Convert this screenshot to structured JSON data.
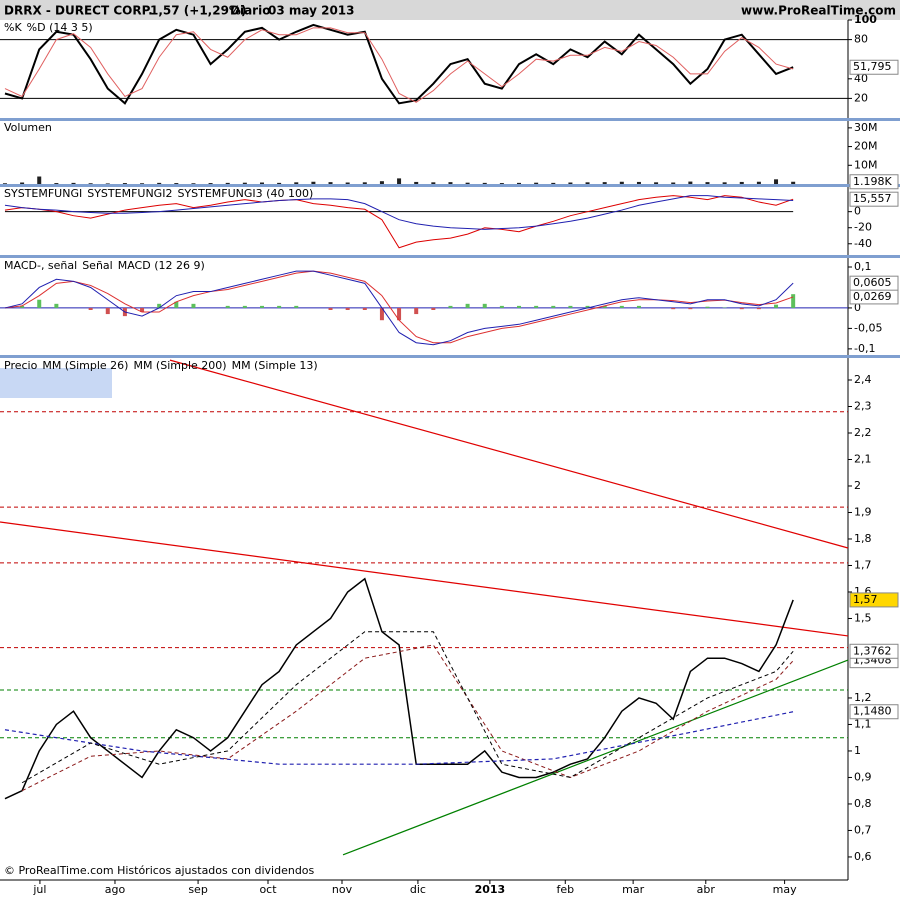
{
  "chart_data": {
    "type": "financial",
    "header": {
      "symbol": "DRRX - DURECT CORP.",
      "quote": "1,57 (+1,29%)",
      "period": "Diario",
      "date": "03 may 2013",
      "site": "www.ProRealTime.com"
    },
    "footer": "© ProRealTime.com Históricos ajustados con dividendos",
    "x": [
      0,
      1,
      2,
      3,
      4,
      5,
      6,
      7,
      8,
      9,
      10,
      11,
      12,
      13,
      14,
      15,
      16,
      17,
      18,
      19,
      20,
      21,
      22,
      23,
      24,
      25,
      26,
      27,
      28,
      29,
      30,
      31,
      32,
      33,
      34,
      35,
      36,
      37,
      38,
      39,
      40,
      41,
      42,
      43,
      44,
      45,
      46
    ],
    "xlim": [
      -0.29,
      49.2
    ],
    "xticks": [
      {
        "value": 2.04,
        "label": "jul"
      },
      {
        "value": 6.42,
        "label": "ago"
      },
      {
        "value": 11.27,
        "label": "sep"
      },
      {
        "value": 15.35,
        "label": "oct"
      },
      {
        "value": 19.67,
        "label": "nov"
      },
      {
        "value": 24.1,
        "label": "dic"
      },
      {
        "value": 28.3,
        "label": "2013"
      },
      {
        "value": 32.7,
        "label": "feb"
      },
      {
        "value": 36.66,
        "label": "mar"
      },
      {
        "value": 40.9,
        "label": "abr"
      },
      {
        "value": 45.5,
        "label": "may"
      }
    ],
    "panels": [
      {
        "type": "line",
        "ylim": [
          0,
          100
        ],
        "yticks": [
          100,
          80,
          40,
          20
        ],
        "levels": [
          {
            "value": 80,
            "color": "#000"
          },
          {
            "value": 20,
            "color": "#000"
          }
        ],
        "series": [
          {
            "name": "%K",
            "color": "#000000",
            "width": 2,
            "values": [
              25,
              20,
              70,
              88,
              85,
              60,
              30,
              15,
              45,
              80,
              90,
              85,
              55,
              70,
              88,
              92,
              80,
              88,
              95,
              90,
              85,
              88,
              40,
              15,
              18,
              35,
              55,
              60,
              35,
              30,
              55,
              65,
              55,
              70,
              62,
              78,
              65,
              85,
              70,
              55,
              35,
              50,
              80,
              85,
              65,
              45,
              51.795
            ],
            "last_label": "51,795"
          },
          {
            "name": "%D (14 3 5)",
            "color": "#e06060",
            "width": 1,
            "values": [
              30,
              22,
              50,
              80,
              86,
              72,
              45,
              22,
              30,
              62,
              85,
              88,
              70,
              62,
              80,
              90,
              85,
              85,
              92,
              92,
              87,
              87,
              60,
              25,
              16,
              28,
              45,
              58,
              45,
              32,
              45,
              60,
              58,
              64,
              64,
              72,
              68,
              78,
              74,
              62,
              45,
              45,
              68,
              82,
              72,
              55,
              50
            ]
          }
        ]
      },
      {
        "type": "bar",
        "ylim": [
          0,
          34200000
        ],
        "yticks": [
          {
            "value": 30000000,
            "label": "30M"
          },
          {
            "value": 20000000,
            "label": "20M"
          },
          {
            "value": 10000000,
            "label": "10M"
          }
        ],
        "levels": [],
        "series": [
          {
            "name": "Volumen",
            "color": "#202020",
            "bars": true,
            "values": [
              400000,
              800000,
              4000000,
              500000,
              600000,
              400000,
              300000,
              500000,
              400000,
              600000,
              500000,
              400000,
              500000,
              600000,
              700000,
              800000,
              600000,
              900000,
              1200000,
              1000000,
              800000,
              900000,
              1500000,
              3000000,
              1100000,
              900000,
              1000000,
              700000,
              600000,
              500000,
              600000,
              700000,
              600000,
              800000,
              900000,
              1000000,
              1200000,
              1100000,
              900000,
              800000,
              1300000,
              1000000,
              900000,
              1100000,
              1200000,
              2500000,
              1198000
            ],
            "last_label": "1.198K"
          }
        ]
      },
      {
        "type": "line",
        "ylim": [
          -54,
          32
        ],
        "yticks": [
          0,
          -20,
          -40
        ],
        "levels": [],
        "series": [
          {
            "name": "SYSTEMFUNGI",
            "color": "#000000",
            "width": 1,
            "x": [
              0,
              46
            ],
            "values": [
              0,
              0
            ]
          },
          {
            "name": "SYSTEMFUNGI2",
            "color": "#dd0000",
            "width": 1,
            "values": [
              2,
              5,
              3,
              0,
              -5,
              -8,
              -3,
              2,
              5,
              8,
              10,
              5,
              8,
              12,
              15,
              12,
              14,
              15,
              10,
              8,
              5,
              3,
              -10,
              -45,
              -38,
              -35,
              -33,
              -28,
              -20,
              -22,
              -25,
              -18,
              -12,
              -5,
              0,
              5,
              10,
              15,
              18,
              20,
              18,
              15,
              20,
              18,
              12,
              8,
              15.557
            ],
            "last_label": "15,557"
          },
          {
            "name": "SYSTEMFUNGI3 (40 100)",
            "color": "#2020b0",
            "width": 1,
            "values": [
              8,
              5,
              3,
              2,
              0,
              -1,
              -2,
              -2,
              -1,
              0,
              2,
              4,
              6,
              8,
              10,
              12,
              14,
              15,
              16,
              16,
              15,
              10,
              0,
              -10,
              -15,
              -18,
              -20,
              -21,
              -22,
              -21,
              -20,
              -18,
              -15,
              -12,
              -8,
              -3,
              2,
              8,
              12,
              16,
              20,
              20,
              18,
              17,
              16,
              15,
              14
            ]
          }
        ]
      },
      {
        "type": "line",
        "ylim": [
          -0.115,
          0.122
        ],
        "yticks": [
          {
            "value": 0.1,
            "label": "0,1"
          },
          0,
          {
            "value": -0.05,
            "label": "-0,05"
          },
          {
            "value": -0.1,
            "label": "-0,1"
          }
        ],
        "levels": [
          {
            "value": 0,
            "color": "#2020b0"
          }
        ],
        "series": [
          {
            "name": "MACD-, señal",
            "color": "#5cc05c",
            "neg_color": "#d05050",
            "bars": true,
            "values": [
              0,
              0.005,
              0.02,
              0.01,
              0,
              -0.005,
              -0.015,
              -0.02,
              -0.01,
              0.01,
              0.015,
              0.01,
              0,
              0.005,
              0.005,
              0.005,
              0.005,
              0.005,
              0,
              -0.005,
              -0.005,
              -0.005,
              -0.03,
              -0.03,
              -0.015,
              -0.005,
              0.005,
              0.01,
              0.01,
              0.005,
              0.005,
              0.005,
              0.005,
              0.005,
              0.005,
              0.005,
              0.005,
              0.005,
              0,
              -0.003,
              -0.003,
              0.003,
              0.001,
              -0.003,
              -0.003,
              0.008,
              0.0336
            ]
          },
          {
            "name": "Señal",
            "color": "#dd3030",
            "width": 1,
            "values": [
              0,
              0.005,
              0.03,
              0.06,
              0.065,
              0.055,
              0.035,
              0.01,
              -0.01,
              -0.01,
              0.015,
              0.03,
              0.04,
              0.045,
              0.055,
              0.065,
              0.075,
              0.085,
              0.09,
              0.085,
              0.075,
              0.065,
              0.03,
              -0.03,
              -0.07,
              -0.085,
              -0.085,
              -0.07,
              -0.06,
              -0.05,
              -0.045,
              -0.035,
              -0.025,
              -0.015,
              -0.005,
              0.005,
              0.015,
              0.02,
              0.02,
              0.018,
              0.013,
              0.017,
              0.019,
              0.013,
              0.008,
              0.012,
              0.0269
            ],
            "last_label": "0,0269"
          },
          {
            "name": "MACD (12 26 9)",
            "color": "#2020b0",
            "width": 1,
            "values": [
              0,
              0.01,
              0.05,
              0.07,
              0.065,
              0.05,
              0.02,
              -0.01,
              -0.02,
              0,
              0.03,
              0.04,
              0.04,
              0.05,
              0.06,
              0.07,
              0.08,
              0.09,
              0.09,
              0.08,
              0.07,
              0.06,
              0,
              -0.06,
              -0.085,
              -0.09,
              -0.08,
              -0.06,
              -0.05,
              -0.045,
              -0.04,
              -0.03,
              -0.02,
              -0.01,
              0,
              0.01,
              0.02,
              0.025,
              0.02,
              0.015,
              0.01,
              0.02,
              0.02,
              0.01,
              0.005,
              0.02,
              0.0605
            ],
            "last_label": "0,0605"
          }
        ]
      },
      {
        "type": "line",
        "ylim": [
          0.513,
          2.483
        ],
        "yticks": [
          {
            "value": 2.4,
            "label": "2,4"
          },
          {
            "value": 2.3,
            "label": "2,3"
          },
          {
            "value": 2.2,
            "label": "2,2"
          },
          {
            "value": 2.1,
            "label": "2,1"
          },
          2,
          {
            "value": 1.9,
            "label": "1,9"
          },
          {
            "value": 1.8,
            "label": "1,8"
          },
          {
            "value": 1.7,
            "label": "1,7"
          },
          {
            "value": 1.6,
            "label": "1,6"
          },
          {
            "value": 1.5,
            "label": "1,5"
          },
          {
            "value": 1.2,
            "label": "1,2"
          },
          {
            "value": 1.1,
            "label": "1,1"
          },
          1,
          {
            "value": 0.9,
            "label": "0,9"
          },
          {
            "value": 0.8,
            "label": "0,8"
          },
          {
            "value": 0.7,
            "label": "0,7"
          },
          {
            "value": 0.6,
            "label": "0,6"
          }
        ],
        "levels": [
          {
            "value": 2.28,
            "color": "#c00000",
            "dash": true
          },
          {
            "value": 1.92,
            "color": "#c00000",
            "dash": true
          },
          {
            "value": 1.71,
            "color": "#c00000",
            "dash": true
          },
          {
            "value": 1.39,
            "color": "#c00000",
            "dash": true
          },
          {
            "value": 1.23,
            "color": "#008000",
            "dash": true
          },
          {
            "value": 1.05,
            "color": "#008000",
            "dash": true
          }
        ],
        "trendlines": [
          {
            "x": [
              -0.29,
              49.2
            ],
            "values": [
              1.864,
              1.434
            ],
            "color": "#e00000"
          },
          {
            "x": [
              9.63,
              49.2
            ],
            "values": [
              2.475,
              1.766
            ],
            "color": "#e00000"
          },
          {
            "x": [
              19.73,
              49.2
            ],
            "values": [
              0.608,
              1.343
            ],
            "color": "#008000"
          }
        ],
        "series": [
          {
            "name": "Precio",
            "color": "#000000",
            "width": 1.5,
            "values": [
              0.82,
              0.85,
              1.0,
              1.1,
              1.15,
              1.05,
              1.0,
              0.95,
              0.9,
              1.0,
              1.08,
              1.05,
              1.0,
              1.05,
              1.15,
              1.25,
              1.3,
              1.4,
              1.45,
              1.5,
              1.6,
              1.65,
              1.45,
              1.4,
              0.95,
              0.95,
              0.95,
              0.95,
              1.0,
              0.92,
              0.9,
              0.9,
              0.92,
              0.95,
              0.97,
              1.05,
              1.15,
              1.2,
              1.18,
              1.12,
              1.3,
              1.35,
              1.35,
              1.33,
              1.3,
              1.4,
              1.57
            ],
            "last_label": "1,57",
            "badge": "#ffd700"
          },
          {
            "name": "MM (Simple 26)",
            "color": "#8b1a1a",
            "width": 1,
            "dash": true,
            "x": [
              1,
              5,
              9,
              13,
              17,
              21,
              25,
              29,
              33,
              37,
              41,
              45,
              46
            ],
            "values": [
              0.85,
              0.98,
              1.0,
              0.97,
              1.15,
              1.35,
              1.4,
              1.0,
              0.9,
              1.0,
              1.15,
              1.27,
              1.3408
            ],
            "last_label": "1,3408"
          },
          {
            "name": "MM (Simple 200)",
            "color": "#2020b0",
            "width": 1.2,
            "dash": true,
            "x": [
              0,
              8,
              16,
              24,
              32,
              40,
              46
            ],
            "values": [
              1.08,
              1.0,
              0.95,
              0.95,
              0.97,
              1.07,
              1.148
            ],
            "last_label": "1,1480"
          },
          {
            "name": "MM (Simple 13)",
            "color": "#000000",
            "width": 1,
            "dash": true,
            "x": [
              1,
              5,
              9,
              13,
              17,
              21,
              25,
              29,
              33,
              37,
              41,
              45,
              46
            ],
            "values": [
              0.88,
              1.03,
              0.95,
              1.0,
              1.25,
              1.45,
              1.45,
              0.95,
              0.9,
              1.05,
              1.2,
              1.3,
              1.3762
            ],
            "last_label": "1,3762"
          }
        ]
      }
    ]
  }
}
